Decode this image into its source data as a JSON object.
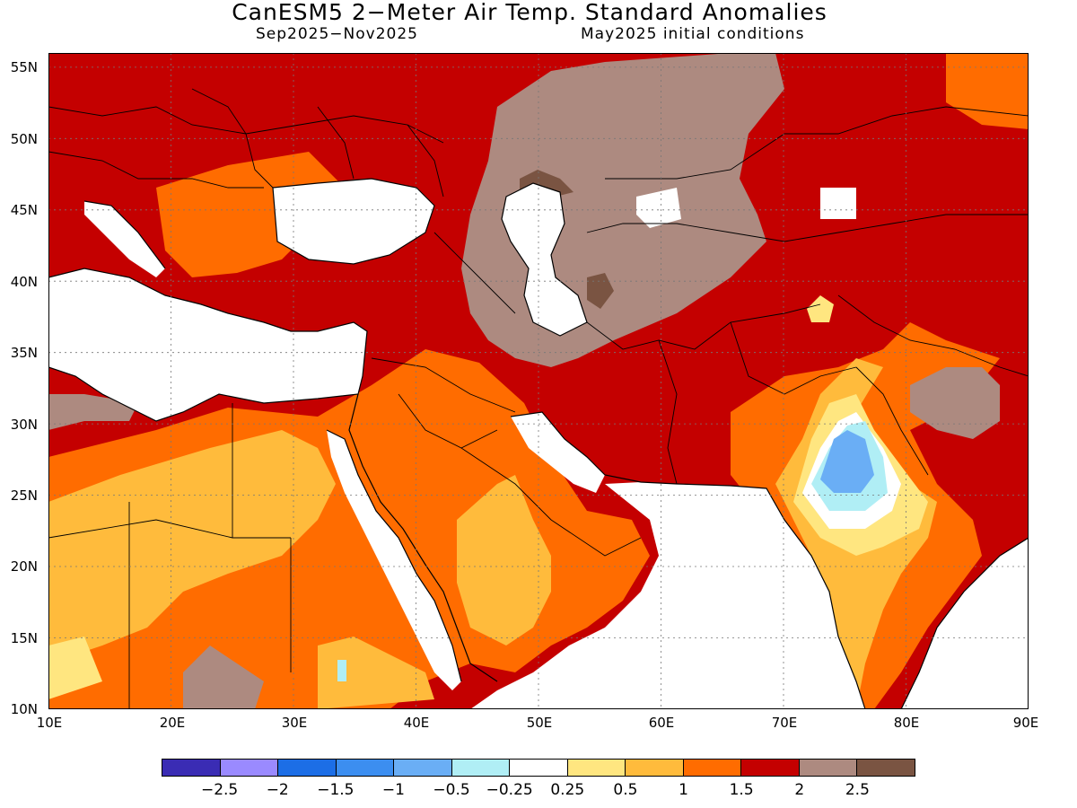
{
  "header": {
    "title": "CanESM5 2−Meter Air Temp. Standard Anomalies",
    "period": "Sep2025−Nov2025",
    "init": "May2025 initial conditions"
  },
  "map": {
    "lon_range": [
      10,
      90
    ],
    "lat_range": [
      10,
      56
    ],
    "lat_labels": [
      "55N",
      "50N",
      "45N",
      "40N",
      "35N",
      "30N",
      "25N",
      "20N",
      "15N",
      "10N"
    ],
    "lon_labels": [
      "10E",
      "20E",
      "30E",
      "40E",
      "50E",
      "60E",
      "70E",
      "80E",
      "90E"
    ],
    "gridlines": "dotted",
    "ocean_color": "#ffffff",
    "coastline_color": "#000000"
  },
  "colorbar": {
    "colors": [
      "#3a2cb4",
      "#9a8aff",
      "#1c6ee6",
      "#3c8ef0",
      "#6aaef5",
      "#b0eef5",
      "#ffffff",
      "#ffe680",
      "#ffbb3c",
      "#ff6c00",
      "#c40000",
      "#ad8a80",
      "#7a5442"
    ],
    "labels": [
      "−2.5",
      "−2",
      "−1.5",
      "−1",
      "−0.5",
      "−0.25",
      "0.25",
      "0.5",
      "1",
      "1.5",
      "2",
      "2.5"
    ]
  }
}
